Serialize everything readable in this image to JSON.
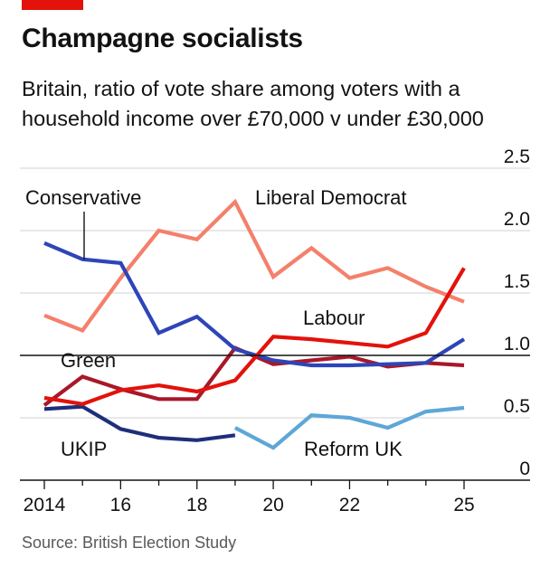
{
  "header": {
    "title": "Champagne socialists",
    "subtitle": "Britain, ratio of vote share among voters with a household income over £70,000 v under £30,000"
  },
  "footer": {
    "source": "Source: British Election Study"
  },
  "colors": {
    "brand_red": "#e3120b",
    "Conservative": "#2e45b8",
    "Liberal Democrat": "#f4806b",
    "Labour": "#e3120b",
    "Green": "#a81829",
    "UKIP": "#1f2e7a",
    "Reform UK": "#5fa6d8",
    "grid": "#d9d9d9"
  },
  "chart_data": {
    "type": "line",
    "ylim": [
      0,
      2.5
    ],
    "yticks": [
      0,
      0.5,
      1.0,
      1.5,
      2.0,
      2.5
    ],
    "ytick_labels": [
      "0",
      "0.5",
      "1.0",
      "1.5",
      "2.0",
      "2.5"
    ],
    "xlim": [
      2014,
      2025
    ],
    "xticks": [
      2014,
      2016,
      2018,
      2020,
      2022,
      2025
    ],
    "xtick_labels": [
      "2014",
      "16",
      "18",
      "20",
      "22",
      "25"
    ],
    "grid": true,
    "reference_line": 1.0,
    "series": [
      {
        "name": "Conservative",
        "x": [
          2014,
          2015,
          2016,
          2017,
          2018,
          2019,
          2020,
          2021,
          2022,
          2023,
          2024,
          2025
        ],
        "values": [
          1.9,
          1.77,
          1.74,
          1.18,
          1.31,
          1.05,
          0.96,
          0.92,
          0.92,
          0.93,
          0.94,
          1.13
        ]
      },
      {
        "name": "Liberal Democrat",
        "x": [
          2014,
          2015,
          2016,
          2017,
          2018,
          2019,
          2020,
          2021,
          2022,
          2023,
          2024,
          2025
        ],
        "values": [
          1.32,
          1.2,
          1.62,
          2.0,
          1.93,
          2.23,
          1.63,
          1.86,
          1.62,
          1.7,
          1.55,
          1.43
        ]
      },
      {
        "name": "Labour",
        "x": [
          2014,
          2015,
          2016,
          2017,
          2018,
          2019,
          2020,
          2021,
          2022,
          2023,
          2024,
          2025
        ],
        "values": [
          0.66,
          0.61,
          0.72,
          0.76,
          0.71,
          0.8,
          1.15,
          1.13,
          1.1,
          1.07,
          1.18,
          1.7
        ]
      },
      {
        "name": "Green",
        "x": [
          2014,
          2015,
          2016,
          2017,
          2018,
          2019,
          2020,
          2021,
          2022,
          2023,
          2024,
          2025
        ],
        "values": [
          0.6,
          0.83,
          0.73,
          0.65,
          0.65,
          1.06,
          0.93,
          0.96,
          0.99,
          0.91,
          0.94,
          0.92
        ]
      },
      {
        "name": "UKIP",
        "x": [
          2014,
          2015,
          2016,
          2017,
          2018,
          2019
        ],
        "values": [
          0.57,
          0.59,
          0.41,
          0.34,
          0.32,
          0.36
        ]
      },
      {
        "name": "Reform UK",
        "x": [
          2019,
          2020,
          2021,
          2022,
          2023,
          2024,
          2025
        ],
        "values": [
          0.42,
          0.26,
          0.52,
          0.5,
          0.42,
          0.55,
          0.58
        ]
      }
    ],
    "labels": [
      "Conservative",
      "Liberal Democrat",
      "Labour",
      "Green",
      "UKIP",
      "Reform UK"
    ]
  }
}
